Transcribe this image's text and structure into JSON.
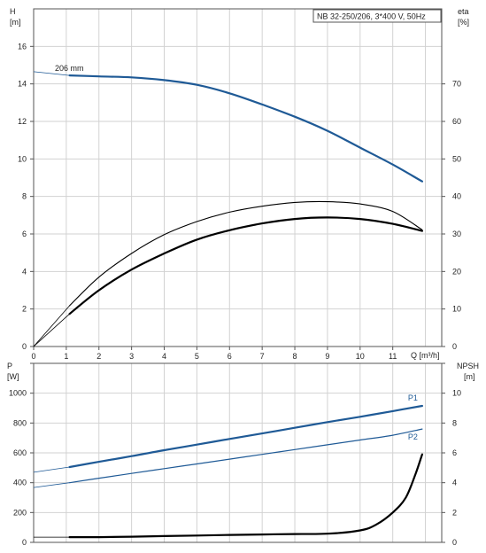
{
  "chart_data": [
    {
      "type": "line",
      "title": "NB 32-250/206, 3*400 V, 50Hz",
      "xlabel": "Q [m³/h]",
      "ylabel_left_name": "H",
      "ylabel_left_unit": "[m]",
      "ylabel_right_name": "eta",
      "ylabel_right_unit": "[%]",
      "xlim": [
        0,
        12.5
      ],
      "ylim_left": [
        0,
        18
      ],
      "ylim_right": [
        0,
        90
      ],
      "grid": true,
      "x_ticks": [
        "0",
        "1",
        "2",
        "3",
        "4",
        "5",
        "6",
        "7",
        "8",
        "9",
        "10",
        "11"
      ],
      "y_ticks_left": [
        "0",
        "2",
        "4",
        "6",
        "8",
        "10",
        "12",
        "14",
        "16"
      ],
      "y_ticks_right": [
        "0",
        "10",
        "20",
        "30",
        "40",
        "50",
        "60",
        "70"
      ],
      "annotations": [
        "206 mm"
      ],
      "series": [
        {
          "axis": "left",
          "color": "#1f5a96",
          "x": [
            1.1,
            2,
            3,
            4,
            5,
            6,
            7,
            8,
            9,
            10,
            11,
            11.9
          ],
          "y": [
            14.45,
            14.4,
            14.35,
            14.2,
            13.95,
            13.5,
            12.9,
            12.25,
            11.5,
            10.6,
            9.7,
            8.8
          ]
        },
        {
          "axis": "right",
          "color": "#000000",
          "x": [
            1.1,
            2,
            3,
            4,
            5,
            6,
            7,
            8,
            9,
            10,
            11,
            11.9
          ],
          "y": [
            10.9,
            18.5,
            24.8,
            29.8,
            33.3,
            35.8,
            37.4,
            38.4,
            38.6,
            38.0,
            36.0,
            31.1
          ]
        },
        {
          "axis": "right",
          "color": "#000000",
          "x": [
            1.1,
            2,
            3,
            4,
            5,
            6,
            7,
            8,
            9,
            10,
            11,
            11.9
          ],
          "y": [
            8.7,
            15.0,
            20.5,
            24.8,
            28.5,
            31.0,
            32.8,
            34.0,
            34.4,
            34.0,
            32.7,
            30.8
          ]
        }
      ]
    },
    {
      "type": "line",
      "xlim": [
        0,
        12.5
      ],
      "ylabel_left_name": "P",
      "ylabel_left_unit": "[W]",
      "ylabel_right_name": "NPSH",
      "ylabel_right_unit": "[m]",
      "ylim_left": [
        0,
        1200
      ],
      "ylim_right": [
        0,
        12
      ],
      "grid": true,
      "y_ticks_left": [
        "0",
        "200",
        "400",
        "600",
        "800",
        "1000"
      ],
      "y_ticks_right": [
        "0",
        "2",
        "4",
        "6",
        "8",
        "10"
      ],
      "series": [
        {
          "name": "P1",
          "axis": "left",
          "color": "#1f5a96",
          "x": [
            1.1,
            2,
            3,
            4,
            5,
            6,
            7,
            8,
            9,
            10,
            11,
            11.9
          ],
          "y": [
            505,
            540,
            578,
            618,
            655,
            693,
            730,
            768,
            806,
            842,
            880,
            915
          ]
        },
        {
          "name": "P2",
          "axis": "left",
          "color": "#1f5a96",
          "x": [
            1.1,
            2,
            3,
            4,
            5,
            6,
            7,
            8,
            9,
            10,
            11,
            11.9
          ],
          "y": [
            400,
            430,
            462,
            494,
            526,
            558,
            590,
            622,
            654,
            686,
            718,
            760
          ]
        },
        {
          "axis": "right",
          "color": "#000000",
          "x": [
            1.1,
            2,
            3,
            4,
            5,
            6,
            7,
            8,
            9,
            10,
            10.5,
            11,
            11.4,
            11.7,
            11.9
          ],
          "y": [
            0.35,
            0.35,
            0.38,
            0.42,
            0.46,
            0.5,
            0.53,
            0.56,
            0.58,
            0.8,
            1.2,
            2.0,
            3.0,
            4.6,
            5.9
          ]
        }
      ]
    }
  ]
}
